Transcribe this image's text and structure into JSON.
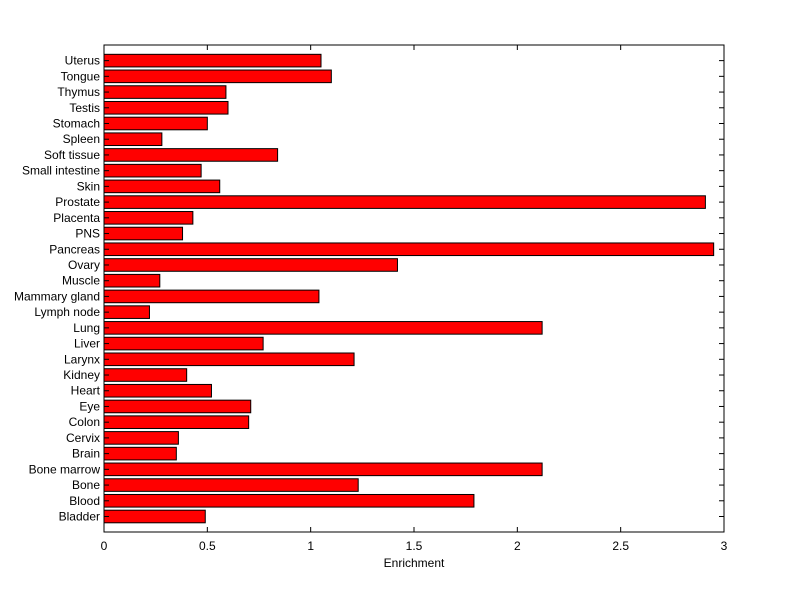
{
  "chart_data": {
    "type": "bar",
    "orientation": "horizontal",
    "title": "",
    "xlabel": "Enrichment",
    "ylabel": "",
    "xlim": [
      0,
      3
    ],
    "xticks": [
      0,
      0.5,
      1,
      1.5,
      2,
      2.5,
      3
    ],
    "xtick_labels": [
      "0",
      "0.5",
      "1",
      "1.5",
      "2",
      "2.5",
      "3"
    ],
    "grid": false,
    "legend": "none",
    "bar_color": "#ff0000",
    "bar_edge_color": "#000000",
    "categories": [
      "Bladder",
      "Blood",
      "Bone",
      "Bone marrow",
      "Brain",
      "Cervix",
      "Colon",
      "Eye",
      "Heart",
      "Kidney",
      "Larynx",
      "Liver",
      "Lung",
      "Lymph node",
      "Mammary gland",
      "Muscle",
      "Ovary",
      "Pancreas",
      "PNS",
      "Placenta",
      "Prostate",
      "Skin",
      "Small intestine",
      "Soft tissue",
      "Spleen",
      "Stomach",
      "Testis",
      "Thymus",
      "Tongue",
      "Uterus"
    ],
    "values": [
      0.49,
      1.79,
      1.23,
      2.12,
      0.35,
      0.36,
      0.7,
      0.71,
      0.52,
      0.4,
      1.21,
      0.77,
      2.12,
      0.22,
      1.04,
      0.27,
      1.42,
      2.95,
      0.38,
      0.43,
      2.91,
      0.56,
      0.47,
      0.84,
      0.28,
      0.5,
      0.6,
      0.59,
      1.1,
      1.05
    ]
  }
}
